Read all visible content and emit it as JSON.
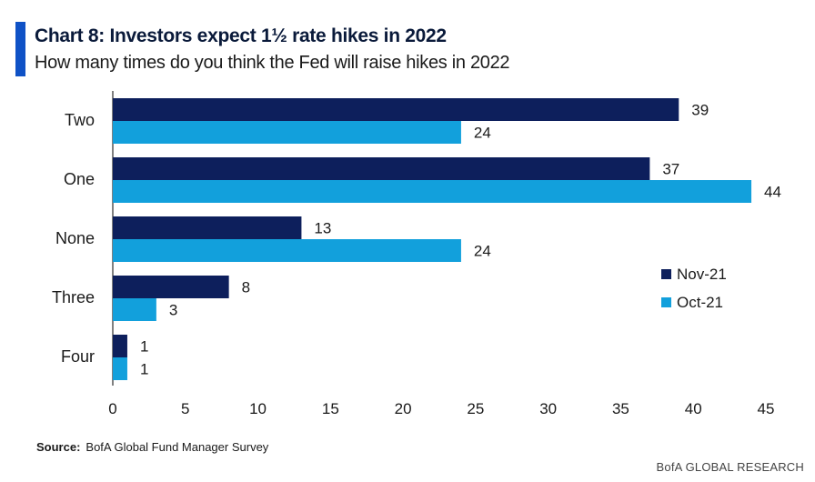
{
  "header": {
    "title": "Chart 8: Investors expect 1½  rate hikes in 2022",
    "subtitle": "How many times do you think the Fed will raise hikes in 2022"
  },
  "footer": {
    "source_label": "Source:",
    "source_text": "BofA Global Fund Manager Survey",
    "brand": "BofA GLOBAL RESEARCH"
  },
  "colors": {
    "accent": "#0f52c6",
    "nov": "#0d1f5c",
    "oct": "#12a0dc"
  },
  "chart_data": {
    "type": "bar",
    "orientation": "horizontal",
    "title": "Chart 8: Investors expect 1½  rate hikes in 2022",
    "subtitle": "How many times do you think the Fed will raise hikes in 2022",
    "categories": [
      "Two",
      "One",
      "None",
      "Three",
      "Four"
    ],
    "series": [
      {
        "name": "Nov-21",
        "color": "#0d1f5c",
        "values": [
          39,
          37,
          13,
          8,
          1
        ]
      },
      {
        "name": "Oct-21",
        "color": "#12a0dc",
        "values": [
          24,
          44,
          24,
          3,
          1
        ]
      }
    ],
    "xlim": [
      0,
      45
    ],
    "xticks": [
      0,
      5,
      10,
      15,
      20,
      25,
      30,
      35,
      40,
      45
    ],
    "xlabel": "",
    "ylabel": "",
    "grid": false,
    "legend_position": "right"
  }
}
